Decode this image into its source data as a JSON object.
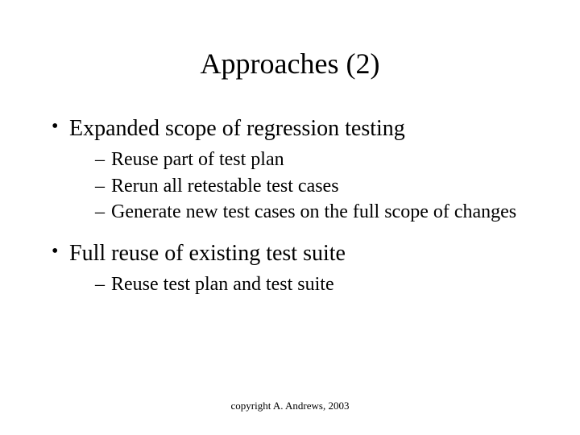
{
  "slide": {
    "title": "Approaches (2)",
    "title_fontsize": 36,
    "bullets": [
      {
        "text": "Expanded scope of regression testing",
        "subitems": [
          "Reuse part of test plan",
          "Rerun all retestable test cases",
          "Generate new test cases on the full scope of changes"
        ]
      },
      {
        "text": "Full reuse of existing test suite",
        "subitems": [
          "Reuse test plan and test suite"
        ]
      }
    ],
    "footer": "copyright A. Andrews, 2003",
    "colors": {
      "background": "#ffffff",
      "text": "#000000"
    },
    "typography": {
      "font_family": "Times New Roman",
      "bullet_fontsize": 28,
      "subitem_fontsize": 24,
      "footer_fontsize": 13
    }
  }
}
